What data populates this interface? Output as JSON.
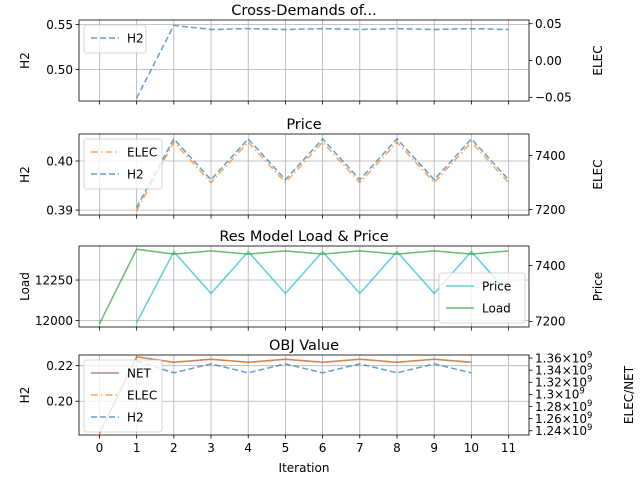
{
  "chart_data": [
    {
      "type": "line",
      "title": "Cross-Demands of...",
      "xlabel": "",
      "ylabel": "H2",
      "ylabel_right": "ELEC",
      "x": [
        0,
        1,
        2,
        3,
        4,
        5,
        6,
        7,
        8,
        9,
        10,
        11
      ],
      "xlim": [
        -0.55,
        11.55
      ],
      "ylim": [
        0.465,
        0.555
      ],
      "yticks": [
        0.5,
        0.55
      ],
      "ytick_labels": [
        "0.50",
        "0.55"
      ],
      "ylim_right": [
        -0.055,
        0.055
      ],
      "yticks_right": [
        -0.05,
        0.0,
        0.05
      ],
      "ytick_labels_right": [
        "−0.05",
        "0.00",
        "0.05"
      ],
      "grid": true,
      "legend": "upper left",
      "series": [
        {
          "name": "H2",
          "axis": "left",
          "color": "#1f77b4",
          "dash": "dashed",
          "x": [
            1,
            2,
            3,
            4,
            5,
            6,
            7,
            8,
            9,
            10,
            11
          ],
          "values": [
            0.468,
            0.549,
            0.5445,
            0.5455,
            0.5445,
            0.5455,
            0.5445,
            0.5455,
            0.5445,
            0.5455,
            0.5445
          ]
        }
      ]
    },
    {
      "type": "line",
      "title": "Price",
      "xlabel": "",
      "ylabel": "H2",
      "ylabel_right": "ELEC",
      "x": [
        0,
        1,
        2,
        3,
        4,
        5,
        6,
        7,
        8,
        9,
        10,
        11
      ],
      "xlim": [
        -0.55,
        11.55
      ],
      "ylim": [
        0.389,
        0.4055
      ],
      "yticks": [
        0.39,
        0.4
      ],
      "ytick_labels": [
        "0.39",
        "0.40"
      ],
      "ylim_right": [
        7180,
        7480
      ],
      "yticks_right": [
        7200,
        7400
      ],
      "ytick_labels_right": [
        "7200",
        "7400"
      ],
      "grid": true,
      "legend": "upper left",
      "series": [
        {
          "name": "ELEC",
          "axis": "right",
          "color": "#ff7f0e",
          "dash": "dashdot",
          "x": [
            1,
            2,
            3,
            4,
            5,
            6,
            7,
            8,
            9,
            10,
            11
          ],
          "values": [
            7195,
            7450,
            7300,
            7450,
            7300,
            7450,
            7300,
            7450,
            7300,
            7450,
            7300
          ]
        },
        {
          "name": "H2",
          "axis": "left",
          "color": "#1f77b4",
          "dash": "dashed",
          "x": [
            1,
            2,
            3,
            4,
            5,
            6,
            7,
            8,
            9,
            10,
            11
          ],
          "values": [
            0.3905,
            0.4045,
            0.3962,
            0.4045,
            0.3962,
            0.4045,
            0.3962,
            0.4045,
            0.3962,
            0.4045,
            0.3962
          ]
        }
      ]
    },
    {
      "type": "line",
      "title": "Res Model Load & Price",
      "xlabel": "",
      "ylabel": "Load",
      "ylabel_right": "Price",
      "x": [
        0,
        1,
        2,
        3,
        4,
        5,
        6,
        7,
        8,
        9,
        10,
        11
      ],
      "xlim": [
        -0.55,
        11.55
      ],
      "ylim": [
        11960,
        12460
      ],
      "yticks": [
        12000,
        12250
      ],
      "ytick_labels": [
        "12000",
        "12250"
      ],
      "ylim_right": [
        7180,
        7470
      ],
      "yticks_right": [
        7200,
        7400
      ],
      "ytick_labels_right": [
        "7200",
        "7400"
      ],
      "grid": true,
      "legend": "lower right",
      "series": [
        {
          "name": "Price",
          "axis": "right",
          "color": "#17becf",
          "dash": "solid",
          "x": [
            1,
            2,
            3,
            4,
            5,
            6,
            7,
            8,
            9,
            10,
            11
          ],
          "values": [
            7195,
            7450,
            7300,
            7450,
            7300,
            7450,
            7300,
            7450,
            7300,
            7450,
            7300
          ]
        },
        {
          "name": "Load",
          "axis": "left",
          "color": "#2ca02c",
          "dash": "solid",
          "x": [
            0,
            1,
            2,
            3,
            4,
            5,
            6,
            7,
            8,
            9,
            10,
            11
          ],
          "values": [
            11980,
            12440,
            12410,
            12430,
            12410,
            12430,
            12410,
            12430,
            12410,
            12430,
            12410,
            12430
          ]
        }
      ]
    },
    {
      "type": "line",
      "title": "OBJ Value",
      "xlabel": "Iteration",
      "ylabel": "H2",
      "ylabel_right": "ELEC/NET",
      "x": [
        0,
        1,
        2,
        3,
        4,
        5,
        6,
        7,
        8,
        9,
        10,
        11
      ],
      "xlim": [
        -0.55,
        11.55
      ],
      "x_tick_labels": [
        "0",
        "1",
        "2",
        "3",
        "4",
        "5",
        "6",
        "7",
        "8",
        "9",
        "10",
        "11"
      ],
      "ylim": [
        0.181,
        0.226
      ],
      "yticks": [
        0.2,
        0.22
      ],
      "ytick_labels": [
        "0.20",
        "0.22"
      ],
      "ylim_right": [
        1233000000.0,
        1365000000.0
      ],
      "yticks_right": [
        1240000000.0,
        1260000000.0,
        1280000000.0,
        1300000000.0,
        1320000000.0,
        1340000000.0,
        1360000000.0
      ],
      "ytick_labels_right": [
        "1.24",
        "1.26",
        "1.28",
        "1.3",
        "1.32",
        "1.34",
        "1.36"
      ],
      "ytick_suffix_right": "×10",
      "ytick_exponent_right": "9",
      "grid": true,
      "legend": "upper left",
      "series": [
        {
          "name": "NET",
          "axis": "right",
          "color": "#8c564b",
          "dash": "solid",
          "x": [
            0,
            1,
            2,
            3,
            4,
            5,
            6,
            7,
            8,
            9,
            10
          ],
          "values": [
            1235000000.0,
            1362000000.0,
            1353000000.0,
            1358000000.0,
            1353000000.0,
            1358000000.0,
            1353000000.0,
            1358000000.0,
            1353000000.0,
            1358000000.0,
            1353000000.0
          ]
        },
        {
          "name": "ELEC",
          "axis": "right",
          "color": "#ff7f0e",
          "dash": "dashdot",
          "x": [
            0,
            1,
            2,
            3,
            4,
            5,
            6,
            7,
            8,
            9,
            10
          ],
          "values": [
            1235000000.0,
            1362000000.0,
            1353000000.0,
            1358000000.0,
            1353000000.0,
            1358000000.0,
            1353000000.0,
            1358000000.0,
            1353000000.0,
            1358000000.0,
            1353000000.0
          ]
        },
        {
          "name": "H2",
          "axis": "left",
          "color": "#1f77b4",
          "dash": "dashed",
          "x": [
            1,
            2,
            3,
            4,
            5,
            6,
            7,
            8,
            9,
            10
          ],
          "values": [
            0.2225,
            0.216,
            0.221,
            0.216,
            0.221,
            0.216,
            0.221,
            0.216,
            0.221,
            0.216
          ]
        }
      ]
    }
  ]
}
